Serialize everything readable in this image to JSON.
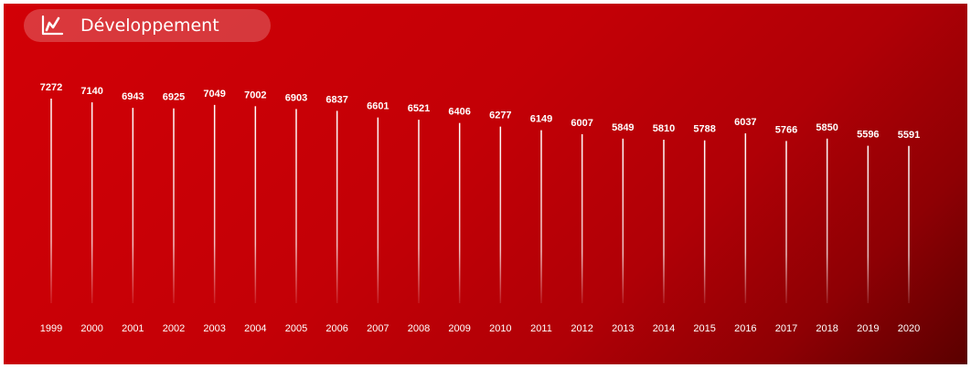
{
  "header": {
    "title": "Développement",
    "icon": "line-chart-icon"
  },
  "colors": {
    "background_start": "#d20006",
    "background_end": "#5a0000",
    "line": "#ffffff",
    "text": "#ffffff"
  },
  "chart_data": {
    "type": "bar",
    "title": "Développement",
    "xlabel": "",
    "ylabel": "",
    "categories": [
      "1999",
      "2000",
      "2001",
      "2002",
      "2003",
      "2004",
      "2005",
      "2006",
      "2007",
      "2008",
      "2009",
      "2010",
      "2011",
      "2012",
      "2013",
      "2014",
      "2015",
      "2016",
      "2017",
      "2018",
      "2019",
      "2020"
    ],
    "values": [
      7272,
      7140,
      6943,
      6925,
      7049,
      7002,
      6903,
      6837,
      6601,
      6521,
      6406,
      6277,
      6149,
      6007,
      5849,
      5810,
      5788,
      6037,
      5766,
      5850,
      5596,
      5591
    ],
    "grid": false,
    "legend": "none"
  }
}
